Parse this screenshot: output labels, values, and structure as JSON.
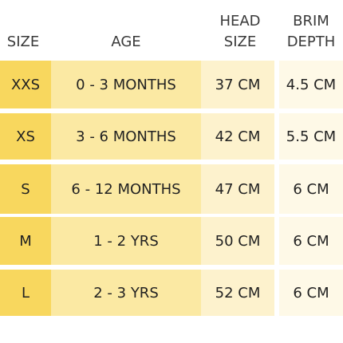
{
  "headers": {
    "size": "SIZE",
    "age": "AGE",
    "head_size": [
      "HEAD",
      "SIZE"
    ],
    "brim_depth": [
      "BRIM",
      "DEPTH"
    ]
  },
  "rows": [
    {
      "size": "XXS",
      "age": "0 - 3 MONTHS",
      "head": "37 CM",
      "brim": "4.5 CM"
    },
    {
      "size": "XS",
      "age": "3 - 6 MONTHS",
      "head": "42 CM",
      "brim": "5.5 CM"
    },
    {
      "size": "S",
      "age": "6 - 12 MONTHS",
      "head": "47 CM",
      "brim": "6 CM"
    },
    {
      "size": "M",
      "age": "1 - 2 YRS",
      "head": "50 CM",
      "brim": "6 CM"
    },
    {
      "size": "L",
      "age": "2 - 3 YRS",
      "head": "52 CM",
      "brim": "6 CM"
    }
  ],
  "colors": {
    "size_column": "#f8d75e",
    "age_column": "#fbe9a3",
    "head_column": "#fdf2cd",
    "brim_column": "#fef9e7"
  }
}
